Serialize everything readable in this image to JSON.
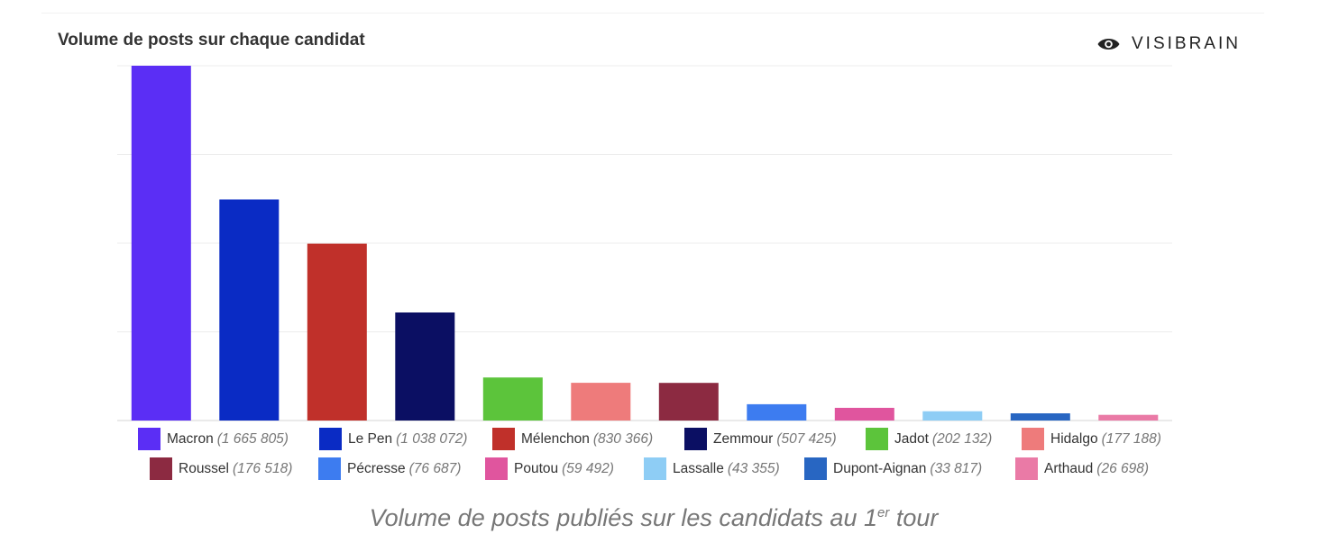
{
  "header": {
    "title": "Volume de posts sur chaque candidat",
    "brand": "VISIBRAIN",
    "brand_icon": "eye-icon"
  },
  "caption": {
    "text": "Volume de posts publiés sur les candidats au 1",
    "superscript": "er",
    "suffix": " tour"
  },
  "chart_data": {
    "type": "bar",
    "title": "Volume de posts sur chaque candidat",
    "categories": [
      "Macron",
      "Le Pen",
      "Mélenchon",
      "Zemmour",
      "Jadot",
      "Hidalgo",
      "Roussel",
      "Pécresse",
      "Poutou",
      "Lassalle",
      "Dupont-Aignan",
      "Arthaud"
    ],
    "values": [
      1665805,
      1038072,
      830366,
      507425,
      202132,
      177188,
      176518,
      76687,
      59492,
      43355,
      33817,
      26698
    ],
    "value_labels": [
      "(1 665 805)",
      "(1 038 072)",
      "(830 366)",
      "(507 425)",
      "(202 132)",
      "(177 188)",
      "(176 518)",
      "(76 687)",
      "(59 492)",
      "(43 355)",
      "(33 817)",
      "(26 698)"
    ],
    "colors": [
      "#5b2ef5",
      "#0a2bc4",
      "#c0302a",
      "#0b0f63",
      "#5cc43b",
      "#ee7b7b",
      "#8c2a41",
      "#3d7cf0",
      "#e0559e",
      "#8ecdf5",
      "#2866c2",
      "#ea7aa6"
    ],
    "ylim": [
      0,
      1665805
    ],
    "grid": true,
    "xlabel": "",
    "ylabel": "",
    "legend_placement": "bottom"
  }
}
